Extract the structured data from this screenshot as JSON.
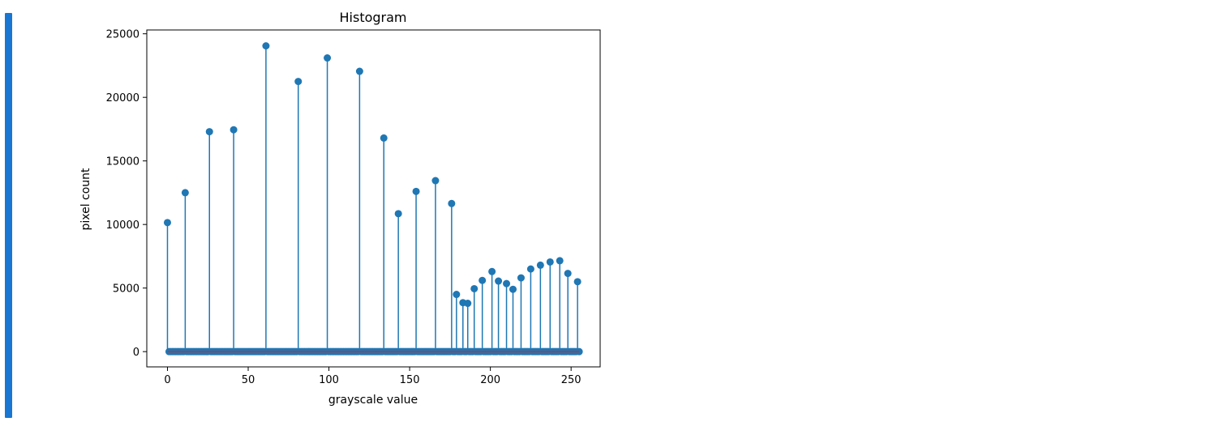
{
  "colors": {
    "cell_indicator": "#1976d2",
    "stem": "#1f77b4",
    "marker": "#1f77b4",
    "baseline": "#d62728",
    "axes": "#000000"
  },
  "chart_data": {
    "type": "scatter",
    "style": "stem",
    "title": "Histogram",
    "xlabel": "grayscale value",
    "ylabel": "pixel count",
    "xlim": [
      -12.8,
      268
    ],
    "ylim": [
      -1200,
      25300
    ],
    "xticks": [
      0,
      50,
      100,
      150,
      200,
      250
    ],
    "yticks": [
      0,
      5000,
      10000,
      15000,
      20000,
      25000
    ],
    "x_range": [
      0,
      255
    ],
    "nonzero_points": [
      {
        "x": 0,
        "y": 10150
      },
      {
        "x": 11,
        "y": 12500
      },
      {
        "x": 26,
        "y": 17300
      },
      {
        "x": 41,
        "y": 17450
      },
      {
        "x": 61,
        "y": 24050
      },
      {
        "x": 81,
        "y": 21250
      },
      {
        "x": 99,
        "y": 23100
      },
      {
        "x": 119,
        "y": 22050
      },
      {
        "x": 134,
        "y": 16800
      },
      {
        "x": 143,
        "y": 10850
      },
      {
        "x": 154,
        "y": 12600
      },
      {
        "x": 166,
        "y": 13450
      },
      {
        "x": 176,
        "y": 11650
      },
      {
        "x": 179,
        "y": 4500
      },
      {
        "x": 183,
        "y": 3850
      },
      {
        "x": 186,
        "y": 3800
      },
      {
        "x": 190,
        "y": 4950
      },
      {
        "x": 195,
        "y": 5600
      },
      {
        "x": 201,
        "y": 6300
      },
      {
        "x": 205,
        "y": 5550
      },
      {
        "x": 210,
        "y": 5350
      },
      {
        "x": 214,
        "y": 4900
      },
      {
        "x": 219,
        "y": 5800
      },
      {
        "x": 225,
        "y": 6500
      },
      {
        "x": 231,
        "y": 6800
      },
      {
        "x": 237,
        "y": 7050
      },
      {
        "x": 243,
        "y": 7150
      },
      {
        "x": 248,
        "y": 6150
      },
      {
        "x": 254,
        "y": 5500
      }
    ],
    "grid": false
  }
}
